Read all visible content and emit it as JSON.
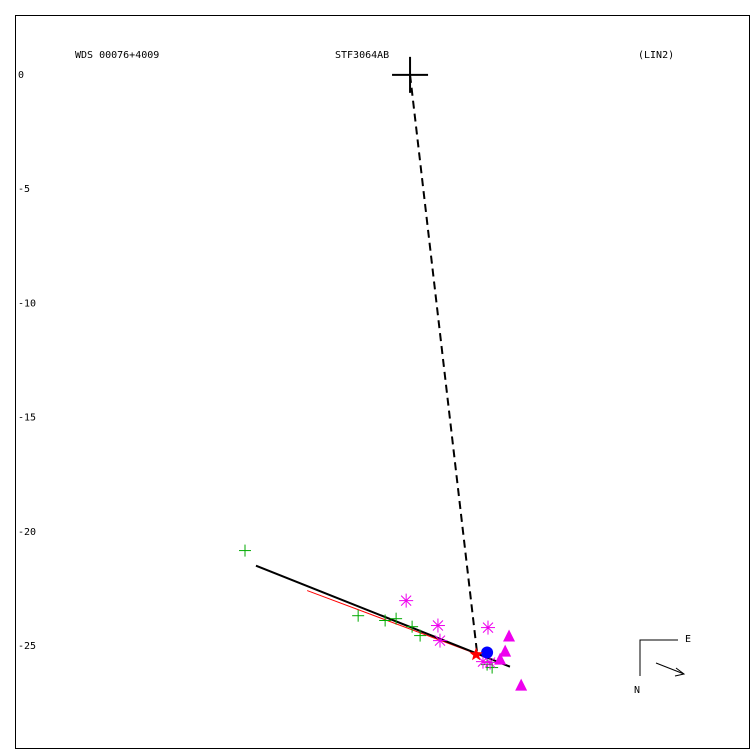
{
  "chart_data": {
    "type": "scatter",
    "title": "WDS 00076+4009",
    "subtitle": "STF3064AB",
    "annotation": "(LIN2)",
    "compass": {
      "east": "E",
      "north": "N"
    },
    "xlim": [
      -17.28,
      14.87
    ],
    "ylim": [
      -29.46,
      2.62
    ],
    "yticks": [
      0,
      -5,
      -10,
      -15,
      -20,
      -25
    ],
    "grid": false,
    "lines": [
      {
        "color": "#000000",
        "dash": true,
        "width": 2,
        "x": [
          0,
          2.93
        ],
        "y": [
          0,
          -25.28
        ]
      },
      {
        "color": "#ff0000",
        "dash": false,
        "width": 1,
        "x": [
          -4.5,
          4.16
        ],
        "y": [
          -22.57,
          -25.81
        ]
      },
      {
        "color": "#000000",
        "dash": false,
        "width": 2,
        "x": [
          -6.74,
          4.37
        ],
        "y": [
          -21.48,
          -25.9
        ]
      }
    ],
    "series": [
      {
        "marker": "bigplus",
        "color": "#000000",
        "x": [
          0
        ],
        "y": [
          0
        ]
      },
      {
        "marker": "plus",
        "color": "#00aa00",
        "x": [
          -7.22,
          -2.27,
          -1.09,
          -0.61,
          0.09,
          0.44,
          3.37,
          3.59
        ],
        "y": [
          -20.82,
          -23.67,
          -23.88,
          -23.8,
          -24.15,
          -24.54,
          -25.81,
          -25.94
        ]
      },
      {
        "marker": "asterisk",
        "color": "#ee00ee",
        "x": [
          -0.17,
          1.22,
          1.31,
          3.41,
          3.19,
          3.5
        ],
        "y": [
          -23.01,
          -24.1,
          -24.76,
          -24.19,
          -25.68,
          -25.72
        ]
      },
      {
        "marker": "triangle",
        "color": "#ee00ee",
        "x": [
          4.33,
          4.86,
          4.16,
          3.94
        ],
        "y": [
          -24.58,
          -26.73,
          -25.24,
          -25.59
        ]
      },
      {
        "marker": "circle",
        "color": "#0000ff",
        "x": [
          3.37
        ],
        "y": [
          -25.28
        ]
      },
      {
        "marker": "star",
        "color": "#ff0000",
        "x": [
          2.89
        ],
        "y": [
          -25.37
        ]
      }
    ]
  }
}
